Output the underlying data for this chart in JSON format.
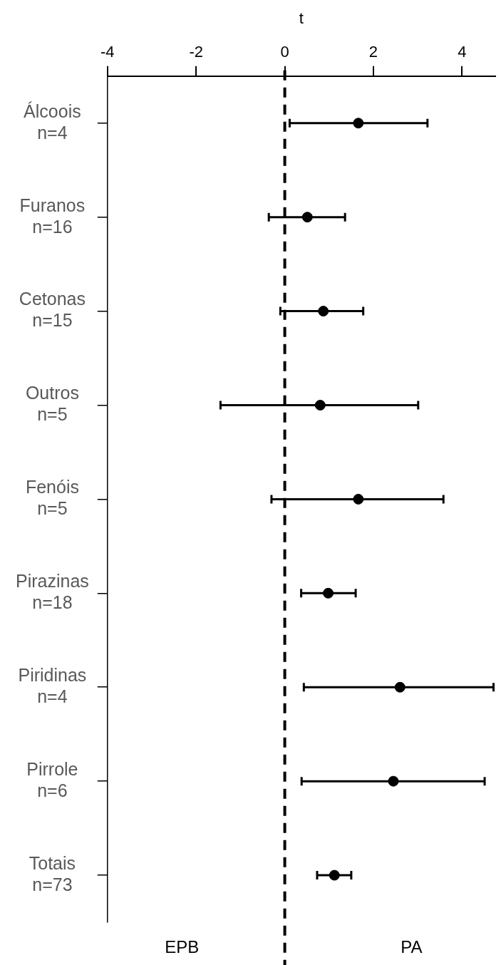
{
  "chart_data": {
    "type": "scatter",
    "orientation": "horizontal",
    "xlabel": "t",
    "categories": [
      "Álcoois\nn=4",
      "Furanos\nn=16",
      "Cetonas\nn=15",
      "Outros\nn=5",
      "Fenóis\nn=5",
      "Pirazinas\nn=18",
      "Piridinas\nn=4",
      "Pirrole\nn=6",
      "Totais\nn=73"
    ],
    "values": [
      1.66,
      0.51,
      0.87,
      0.8,
      1.66,
      0.98,
      2.6,
      2.45,
      1.12
    ],
    "errors": [
      [
        0.11,
        3.22
      ],
      [
        -0.36,
        1.36
      ],
      [
        -0.1,
        1.77
      ],
      [
        -1.45,
        3.01
      ],
      [
        -0.3,
        3.58
      ],
      [
        0.37,
        1.6
      ],
      [
        0.43,
        4.71
      ],
      [
        0.38,
        4.51
      ],
      [
        0.73,
        1.5
      ]
    ],
    "color": "#000000",
    "marker": "circle",
    "xlim": [
      -4,
      4.75
    ],
    "xticks": [
      -4,
      -2,
      0,
      2,
      4
    ],
    "ref_lines": [
      {
        "axis": "x",
        "value": 0,
        "line_style": "dashed",
        "color": "#000000"
      }
    ],
    "annotations": [
      "EPB",
      "PA"
    ],
    "grid": false,
    "legend": false
  }
}
